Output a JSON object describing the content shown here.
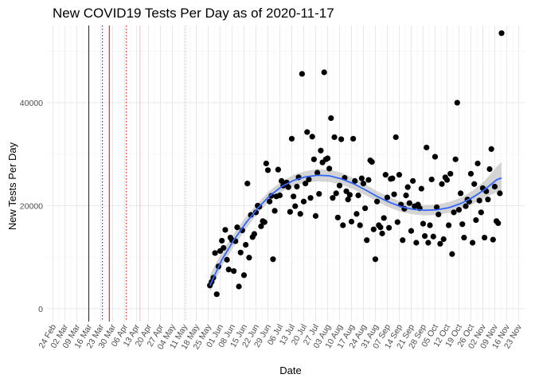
{
  "chart_data": {
    "type": "scatter",
    "title": "New COVID19 Tests Per Day as of 2020-11-17",
    "xlabel": "Date",
    "ylabel": "New Tests Per Day",
    "x_start": "2020-02-24",
    "x_end": "2020-11-23",
    "xlim": [
      "2020-02-20",
      "2020-11-27"
    ],
    "ylim": [
      -2500,
      55000
    ],
    "y_ticks": [
      0,
      20000,
      40000
    ],
    "x_ticks": [
      "24 Feb",
      "02 Mar",
      "09 Mar",
      "16 Mar",
      "23 Mar",
      "30 Mar",
      "06 Apr",
      "13 Apr",
      "20 Apr",
      "27 Apr",
      "04 May",
      "11 May",
      "18 May",
      "25 May",
      "01 Jun",
      "08 Jun",
      "15 Jun",
      "22 Jun",
      "29 Jun",
      "06 Jul",
      "13 Jul",
      "20 Jul",
      "27 Jul",
      "03 Aug",
      "10 Aug",
      "17 Aug",
      "24 Aug",
      "31 Aug",
      "07 Sep",
      "14 Sep",
      "21 Sep",
      "28 Sep",
      "05 Oct",
      "12 Oct",
      "19 Oct",
      "26 Oct",
      "02 Nov",
      "09 Nov",
      "16 Nov",
      "23 Nov"
    ],
    "grid": true,
    "point_color": "#000000",
    "smooth_color": "#3366FF",
    "ribbon_color": "#cccccc",
    "vlines": [
      {
        "date": "2020-03-16",
        "color": "#3d0d1a",
        "style": "solid"
      },
      {
        "date": "2020-03-24",
        "color": "#1a1a4d",
        "style": "dotted"
      },
      {
        "date": "2020-03-28",
        "color": "#cc0000",
        "style": "solid"
      },
      {
        "date": "2020-04-07",
        "color": "#cc0000",
        "style": "dotted"
      },
      {
        "date": "2020-04-15",
        "color": "#f4b8b8",
        "style": "solid"
      },
      {
        "date": "2020-05-12",
        "color": "#f4b8b8",
        "style": "dotted"
      }
    ],
    "points": [
      [
        "2020-05-26",
        4500
      ],
      [
        "2020-05-27",
        5200
      ],
      [
        "2020-05-28",
        6000
      ],
      [
        "2020-05-29",
        10800
      ],
      [
        "2020-05-30",
        2800
      ],
      [
        "2020-05-31",
        8200
      ],
      [
        "2020-06-01",
        11200
      ],
      [
        "2020-06-02",
        13200
      ],
      [
        "2020-06-03",
        11800
      ],
      [
        "2020-06-04",
        15300
      ],
      [
        "2020-06-05",
        9500
      ],
      [
        "2020-06-06",
        7600
      ],
      [
        "2020-06-07",
        13800
      ],
      [
        "2020-06-08",
        13300
      ],
      [
        "2020-06-09",
        7300
      ],
      [
        "2020-06-10",
        13100
      ],
      [
        "2020-06-11",
        15800
      ],
      [
        "2020-06-12",
        4300
      ],
      [
        "2020-06-13",
        10900
      ],
      [
        "2020-06-14",
        15200
      ],
      [
        "2020-06-15",
        6500
      ],
      [
        "2020-06-16",
        12400
      ],
      [
        "2020-06-17",
        24300
      ],
      [
        "2020-06-18",
        9900
      ],
      [
        "2020-06-19",
        18200
      ],
      [
        "2020-06-20",
        13900
      ],
      [
        "2020-06-21",
        14500
      ],
      [
        "2020-06-22",
        18700
      ],
      [
        "2020-06-23",
        20000
      ],
      [
        "2020-06-24",
        19800
      ],
      [
        "2020-06-25",
        16000
      ],
      [
        "2020-06-26",
        17000
      ],
      [
        "2020-06-27",
        16800
      ],
      [
        "2020-06-28",
        28200
      ],
      [
        "2020-06-29",
        26900
      ],
      [
        "2020-06-30",
        20800
      ],
      [
        "2020-07-01",
        21900
      ],
      [
        "2020-07-02",
        9600
      ],
      [
        "2020-07-03",
        19000
      ],
      [
        "2020-07-04",
        21800
      ],
      [
        "2020-07-05",
        27000
      ],
      [
        "2020-07-06",
        22000
      ],
      [
        "2020-07-07",
        24800
      ],
      [
        "2020-07-08",
        23900
      ],
      [
        "2020-07-09",
        24200
      ],
      [
        "2020-07-10",
        24500
      ],
      [
        "2020-07-11",
        23600
      ],
      [
        "2020-07-12",
        18800
      ],
      [
        "2020-07-13",
        33000
      ],
      [
        "2020-07-14",
        21800
      ],
      [
        "2020-07-15",
        19900
      ],
      [
        "2020-07-16",
        23700
      ],
      [
        "2020-07-17",
        25500
      ],
      [
        "2020-07-18",
        18400
      ],
      [
        "2020-07-19",
        45600
      ],
      [
        "2020-07-20",
        20800
      ],
      [
        "2020-07-21",
        24300
      ],
      [
        "2020-07-22",
        34300
      ],
      [
        "2020-07-23",
        25100
      ],
      [
        "2020-07-24",
        21500
      ],
      [
        "2020-07-25",
        33400
      ],
      [
        "2020-07-26",
        29000
      ],
      [
        "2020-07-27",
        18000
      ],
      [
        "2020-07-28",
        26400
      ],
      [
        "2020-07-29",
        22300
      ],
      [
        "2020-07-30",
        30700
      ],
      [
        "2020-07-31",
        28400
      ],
      [
        "2020-08-01",
        45900
      ],
      [
        "2020-08-02",
        29000
      ],
      [
        "2020-08-03",
        29200
      ],
      [
        "2020-08-04",
        27200
      ],
      [
        "2020-08-05",
        37000
      ],
      [
        "2020-08-06",
        21500
      ],
      [
        "2020-08-07",
        33300
      ],
      [
        "2020-08-08",
        22400
      ],
      [
        "2020-08-09",
        17700
      ],
      [
        "2020-08-10",
        23900
      ],
      [
        "2020-08-11",
        32900
      ],
      [
        "2020-08-12",
        16200
      ],
      [
        "2020-08-13",
        25400
      ],
      [
        "2020-08-14",
        22800
      ],
      [
        "2020-08-15",
        21200
      ],
      [
        "2020-08-16",
        22100
      ],
      [
        "2020-08-17",
        16900
      ],
      [
        "2020-08-18",
        33000
      ],
      [
        "2020-08-19",
        24800
      ],
      [
        "2020-08-20",
        18400
      ],
      [
        "2020-08-21",
        22000
      ],
      [
        "2020-08-22",
        16200
      ],
      [
        "2020-08-23",
        25300
      ],
      [
        "2020-08-24",
        24300
      ],
      [
        "2020-08-25",
        19500
      ],
      [
        "2020-08-26",
        13300
      ],
      [
        "2020-08-27",
        25000
      ],
      [
        "2020-08-28",
        28800
      ],
      [
        "2020-08-29",
        28500
      ],
      [
        "2020-08-30",
        15400
      ],
      [
        "2020-08-31",
        9600
      ],
      [
        "2020-09-01",
        20800
      ],
      [
        "2020-09-02",
        16200
      ],
      [
        "2020-09-03",
        15800
      ],
      [
        "2020-09-04",
        14600
      ],
      [
        "2020-09-05",
        17600
      ],
      [
        "2020-09-06",
        26000
      ],
      [
        "2020-09-07",
        21600
      ],
      [
        "2020-09-08",
        15700
      ],
      [
        "2020-09-09",
        25200
      ],
      [
        "2020-09-10",
        25300
      ],
      [
        "2020-09-11",
        22200
      ],
      [
        "2020-09-12",
        33300
      ],
      [
        "2020-09-13",
        16800
      ],
      [
        "2020-09-14",
        26000
      ],
      [
        "2020-09-15",
        20200
      ],
      [
        "2020-09-16",
        13300
      ],
      [
        "2020-09-17",
        19400
      ],
      [
        "2020-09-18",
        22000
      ],
      [
        "2020-09-19",
        23600
      ],
      [
        "2020-09-20",
        20500
      ],
      [
        "2020-09-21",
        15100
      ],
      [
        "2020-09-22",
        24800
      ],
      [
        "2020-09-23",
        19900
      ],
      [
        "2020-09-24",
        12800
      ],
      [
        "2020-09-25",
        20200
      ],
      [
        "2020-09-26",
        19500
      ],
      [
        "2020-09-27",
        23300
      ],
      [
        "2020-09-28",
        16500
      ],
      [
        "2020-09-29",
        14100
      ],
      [
        "2020-09-30",
        31300
      ],
      [
        "2020-10-01",
        12800
      ],
      [
        "2020-10-02",
        16200
      ],
      [
        "2020-10-03",
        25100
      ],
      [
        "2020-10-04",
        14000
      ],
      [
        "2020-10-05",
        29500
      ],
      [
        "2020-10-06",
        19700
      ],
      [
        "2020-10-07",
        18300
      ],
      [
        "2020-10-08",
        12600
      ],
      [
        "2020-10-09",
        24200
      ],
      [
        "2020-10-10",
        13500
      ],
      [
        "2020-10-11",
        25500
      ],
      [
        "2020-10-12",
        25000
      ],
      [
        "2020-10-13",
        16200
      ],
      [
        "2020-10-14",
        26200
      ],
      [
        "2020-10-15",
        10600
      ],
      [
        "2020-10-16",
        18700
      ],
      [
        "2020-10-17",
        29000
      ],
      [
        "2020-10-18",
        40000
      ],
      [
        "2020-10-19",
        19200
      ],
      [
        "2020-10-20",
        22400
      ],
      [
        "2020-10-21",
        16400
      ],
      [
        "2020-10-22",
        13800
      ],
      [
        "2020-10-23",
        19900
      ],
      [
        "2020-10-24",
        21200
      ],
      [
        "2020-10-25",
        20800
      ],
      [
        "2020-10-26",
        26200
      ],
      [
        "2020-10-27",
        12800
      ],
      [
        "2020-10-28",
        24200
      ],
      [
        "2020-10-29",
        17200
      ],
      [
        "2020-10-30",
        28200
      ],
      [
        "2020-10-31",
        21000
      ],
      [
        "2020-11-01",
        18700
      ],
      [
        "2020-11-02",
        23400
      ],
      [
        "2020-11-03",
        13800
      ],
      [
        "2020-11-04",
        22800
      ],
      [
        "2020-11-05",
        21200
      ],
      [
        "2020-11-06",
        27100
      ],
      [
        "2020-11-07",
        31000
      ],
      [
        "2020-11-08",
        13400
      ],
      [
        "2020-11-09",
        23700
      ],
      [
        "2020-11-10",
        17000
      ],
      [
        "2020-11-11",
        16600
      ],
      [
        "2020-11-12",
        22400
      ],
      [
        "2020-11-13",
        53500
      ]
    ],
    "smooth": [
      [
        "2020-05-26",
        4500,
        3200,
        6500
      ],
      [
        "2020-06-02",
        9500,
        8200,
        11000
      ],
      [
        "2020-06-09",
        13300,
        12100,
        14600
      ],
      [
        "2020-06-16",
        16600,
        15400,
        17800
      ],
      [
        "2020-06-23",
        19500,
        18500,
        20500
      ],
      [
        "2020-06-30",
        21900,
        20900,
        22900
      ],
      [
        "2020-07-07",
        23700,
        22700,
        24700
      ],
      [
        "2020-07-14",
        24900,
        23800,
        26000
      ],
      [
        "2020-07-21",
        25600,
        24500,
        26700
      ],
      [
        "2020-07-28",
        25900,
        24700,
        27100
      ],
      [
        "2020-08-04",
        25800,
        24600,
        27000
      ],
      [
        "2020-08-11",
        25200,
        24100,
        26400
      ],
      [
        "2020-08-18",
        24300,
        23200,
        25400
      ],
      [
        "2020-08-25",
        23100,
        22100,
        24200
      ],
      [
        "2020-09-01",
        21800,
        20800,
        22800
      ],
      [
        "2020-09-08",
        20700,
        19700,
        21700
      ],
      [
        "2020-09-15",
        19800,
        18800,
        20800
      ],
      [
        "2020-09-22",
        19300,
        18300,
        20300
      ],
      [
        "2020-09-29",
        19100,
        18100,
        20100
      ],
      [
        "2020-10-06",
        19200,
        18200,
        20200
      ],
      [
        "2020-10-13",
        19600,
        18600,
        20700
      ],
      [
        "2020-10-20",
        20400,
        19300,
        21500
      ],
      [
        "2020-10-27",
        21600,
        20300,
        22900
      ],
      [
        "2020-11-03",
        23100,
        21500,
        24800
      ],
      [
        "2020-11-10",
        25000,
        22600,
        27500
      ],
      [
        "2020-11-13",
        25400,
        22300,
        28500
      ]
    ]
  }
}
